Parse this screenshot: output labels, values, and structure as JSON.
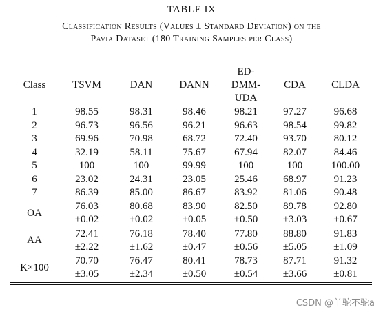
{
  "table_number": "TABLE IX",
  "caption_line1": "Classification Results (Values ± Standard Deviation) on the",
  "caption_line2": "Pavia Dataset (180 Training Samples per Class)",
  "columns": [
    "Class",
    "TSVM",
    "DAN",
    "DANN",
    "ED-\nDMM-\nUDA",
    "CDA",
    "CLDA"
  ],
  "rows": [
    {
      "label": "1",
      "cells": [
        {
          "v": "98.55",
          "b": true
        },
        {
          "v": "98.31"
        },
        {
          "v": "98.46"
        },
        {
          "v": "98.21"
        },
        {
          "v": "97.27"
        },
        {
          "v": "96.68"
        }
      ]
    },
    {
      "label": "2",
      "cells": [
        {
          "v": "96.73"
        },
        {
          "v": "96.56"
        },
        {
          "v": "96.21"
        },
        {
          "v": "96.63"
        },
        {
          "v": "98.54"
        },
        {
          "v": "99.82",
          "b": true
        }
      ]
    },
    {
      "label": "3",
      "cells": [
        {
          "v": "69.96"
        },
        {
          "v": "70.98"
        },
        {
          "v": "68.72"
        },
        {
          "v": "72.40"
        },
        {
          "v": "93.70",
          "b": true
        },
        {
          "v": "80.12"
        }
      ]
    },
    {
      "label": "4",
      "cells": [
        {
          "v": "32.19"
        },
        {
          "v": "58.11"
        },
        {
          "v": "75.67"
        },
        {
          "v": "67.94"
        },
        {
          "v": "82.07"
        },
        {
          "v": "84.46",
          "b": true
        }
      ]
    },
    {
      "label": "5",
      "cells": [
        {
          "v": "100",
          "b": true
        },
        {
          "v": "100",
          "b": true
        },
        {
          "v": "99.99"
        },
        {
          "v": "100",
          "b": true
        },
        {
          "v": "100",
          "b": true
        },
        {
          "v": "100.00",
          "b": true
        }
      ]
    },
    {
      "label": "6",
      "cells": [
        {
          "v": "23.02"
        },
        {
          "v": "24.31"
        },
        {
          "v": "23.05"
        },
        {
          "v": "25.46"
        },
        {
          "v": "68.97"
        },
        {
          "v": "91.23",
          "b": true
        }
      ]
    },
    {
      "label": "7",
      "cells": [
        {
          "v": "86.39"
        },
        {
          "v": "85.00"
        },
        {
          "v": "86.67"
        },
        {
          "v": "83.92"
        },
        {
          "v": "81.06"
        },
        {
          "v": "90.48",
          "b": true
        }
      ]
    },
    {
      "label": "OA",
      "cells": [
        {
          "v": "76.03",
          "s": "±0.02"
        },
        {
          "v": "80.68",
          "s": "±0.02"
        },
        {
          "v": "83.90",
          "s": "±0.05"
        },
        {
          "v": "82.50",
          "s": "±0.50"
        },
        {
          "v": "89.78",
          "s": "±3.03"
        },
        {
          "v": "92.80",
          "s": "±0.67",
          "b": true
        }
      ]
    },
    {
      "label": "AA",
      "cells": [
        {
          "v": "72.41",
          "s": "±2.22"
        },
        {
          "v": "76.18",
          "s": "±1.62"
        },
        {
          "v": "78.40",
          "s": "±0.47"
        },
        {
          "v": "77.80",
          "s": "±0.56"
        },
        {
          "v": "88.80",
          "s": "±5.05"
        },
        {
          "v": "91.83",
          "s": "±1.09",
          "b": true
        }
      ]
    },
    {
      "label": "K×100",
      "cells": [
        {
          "v": "70.70",
          "s": "±3.05"
        },
        {
          "v": "76.47",
          "s": "±2.34"
        },
        {
          "v": "80.41",
          "s": "±0.50"
        },
        {
          "v": "78.73",
          "s": "±0.54"
        },
        {
          "v": "87.71",
          "s": "±3.66"
        },
        {
          "v": "91.32",
          "s": "±0.81",
          "b": true
        }
      ]
    }
  ],
  "watermark": "CSDN @羊驼不驼a"
}
